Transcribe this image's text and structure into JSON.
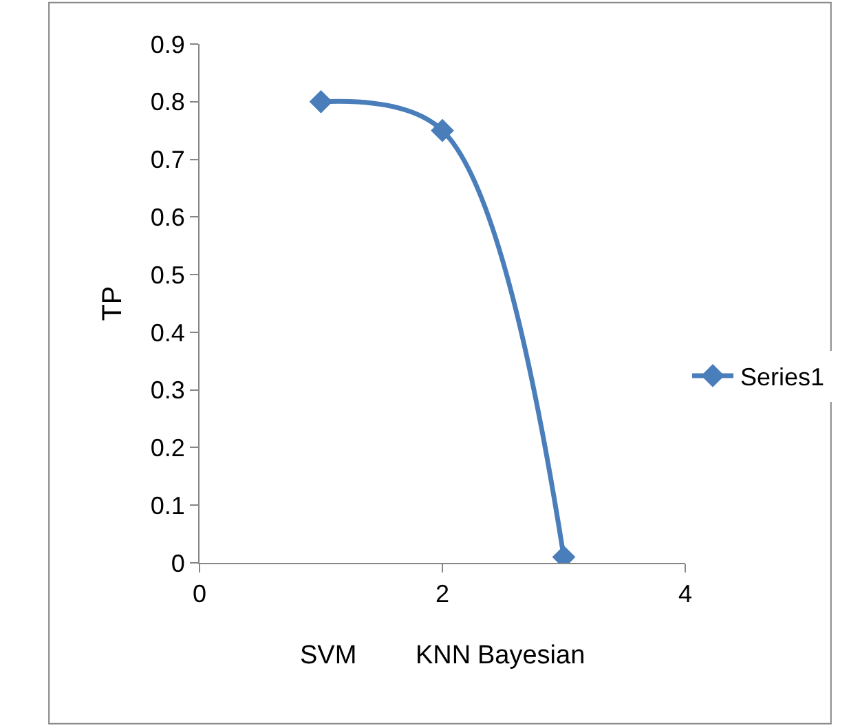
{
  "chart_data": {
    "type": "line",
    "ylabel": "TP",
    "annotations": [
      "SVM",
      "KNN",
      "Bayesian"
    ],
    "x": [
      1,
      2,
      3
    ],
    "series": [
      {
        "name": "Series1",
        "color": "#4a7ebb",
        "values": [
          0.8,
          0.75,
          0.01
        ]
      }
    ],
    "xlim": [
      0,
      4
    ],
    "xticks": [
      0,
      2,
      4
    ],
    "ylim": [
      0,
      0.9
    ],
    "yticks": [
      0,
      0.1,
      0.2,
      0.3,
      0.4,
      0.5,
      0.6,
      0.7,
      0.8,
      0.9
    ],
    "marker": "diamond",
    "line_style": "solid",
    "legend": "right"
  }
}
